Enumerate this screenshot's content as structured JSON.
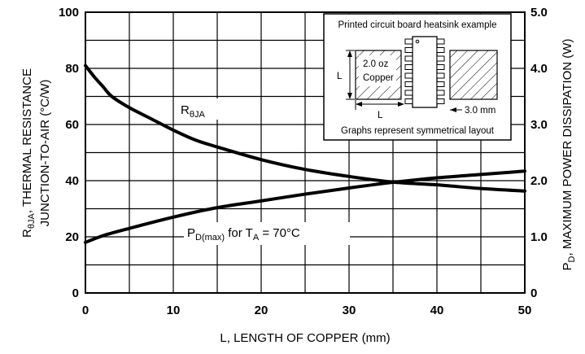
{
  "chart_data": {
    "type": "line",
    "xlabel": "L, LENGTH OF COPPER (mm)",
    "ylabel_left": {
      "line1_pre": "R",
      "line1_sub": "θJA",
      "line1_post": ", THERMAL RESISTANCE",
      "line2": "JUNCTION-TO-AIR (°C/W)"
    },
    "ylabel_right": {
      "pre": "P",
      "sub": "D",
      "post": ", MAXIMUM POWER DISSIPATION (W)"
    },
    "x_ticks": [
      "0",
      "10",
      "20",
      "30",
      "40",
      "50"
    ],
    "y_left_ticks": [
      "0",
      "20",
      "40",
      "60",
      "80",
      "100"
    ],
    "y_right_ticks": [
      "0",
      "1.0",
      "2.0",
      "3.0",
      "4.0",
      "5.0"
    ],
    "xlim": [
      0,
      50
    ],
    "ylim_left": [
      0,
      100
    ],
    "ylim_right": [
      0,
      5.0
    ],
    "grid": true,
    "series": [
      {
        "name_pre": "R",
        "name_sub": "θJA",
        "axis": "left",
        "x": [
          0,
          1,
          2,
          3,
          5,
          7.5,
          10,
          12.5,
          15,
          20,
          25,
          30,
          35,
          40,
          45,
          50
        ],
        "values": [
          81,
          77,
          73.5,
          70,
          66,
          62,
          58,
          54.5,
          52,
          47.5,
          44,
          41.5,
          39.5,
          38.5,
          37.2,
          36.3
        ]
      },
      {
        "name_pre": "P",
        "name_sub": "D(max)",
        "name_mid": " for T",
        "name_sub2": "A",
        "name_post": " = 70°C",
        "axis": "right",
        "x": [
          0,
          2,
          5,
          10,
          15,
          20,
          25,
          30,
          35,
          40,
          45,
          50
        ],
        "values": [
          0.9,
          1.02,
          1.15,
          1.35,
          1.52,
          1.64,
          1.76,
          1.87,
          1.97,
          2.05,
          2.11,
          2.17
        ]
      }
    ],
    "inset": {
      "title": "Printed circuit board heatsink example",
      "copper_label_1": "2.0 oz",
      "copper_label_2": "Copper",
      "dim_l_vertical": "L",
      "dim_l_horizontal": "L",
      "dim_pin": "3.0 mm",
      "caption": "Graphs represent symmetrical layout"
    }
  }
}
